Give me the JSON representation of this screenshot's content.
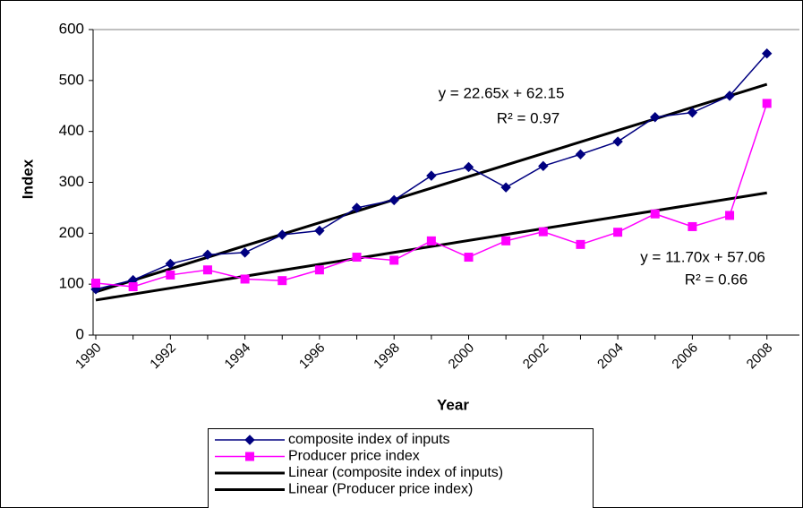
{
  "chart_data": {
    "type": "line",
    "y_label": "Index",
    "x_label": "Year",
    "categories": [
      "1990",
      null,
      "1992",
      null,
      "1994",
      null,
      "1996",
      null,
      "1998",
      null,
      "2000",
      null,
      "2002",
      null,
      "2004",
      null,
      "2006",
      null,
      "2008"
    ],
    "series": [
      {
        "name": "composite index of inputs",
        "color": "#000080",
        "marker": "diamond",
        "values": [
          90,
          108,
          140,
          158,
          162,
          197,
          205,
          250,
          265,
          313,
          330,
          290,
          332,
          355,
          380,
          428,
          437,
          470,
          553
        ]
      },
      {
        "name": "Producer price index",
        "color": "#ff00ff",
        "marker": "square",
        "values": [
          102,
          95,
          118,
          128,
          110,
          107,
          128,
          153,
          147,
          185,
          153,
          185,
          203,
          178,
          202,
          238,
          213,
          235,
          455
        ]
      }
    ],
    "trendlines": [
      {
        "name": "Linear (composite index of inputs)",
        "color": "#000000",
        "slope": 22.65,
        "intercept": 62.15,
        "equation": "y = 22.65x + 62.15",
        "r2_label": "R² = 0.97"
      },
      {
        "name": "Linear (Producer price index)",
        "color": "#000000",
        "slope": 11.7,
        "intercept": 57.06,
        "equation": "y = 11.70x + 57.06",
        "r2_label": "R² = 0.66"
      }
    ],
    "ylim": [
      0,
      600
    ],
    "yticks": [
      0,
      100,
      200,
      300,
      400,
      500,
      600
    ],
    "grid": false,
    "legend": "bottom"
  }
}
